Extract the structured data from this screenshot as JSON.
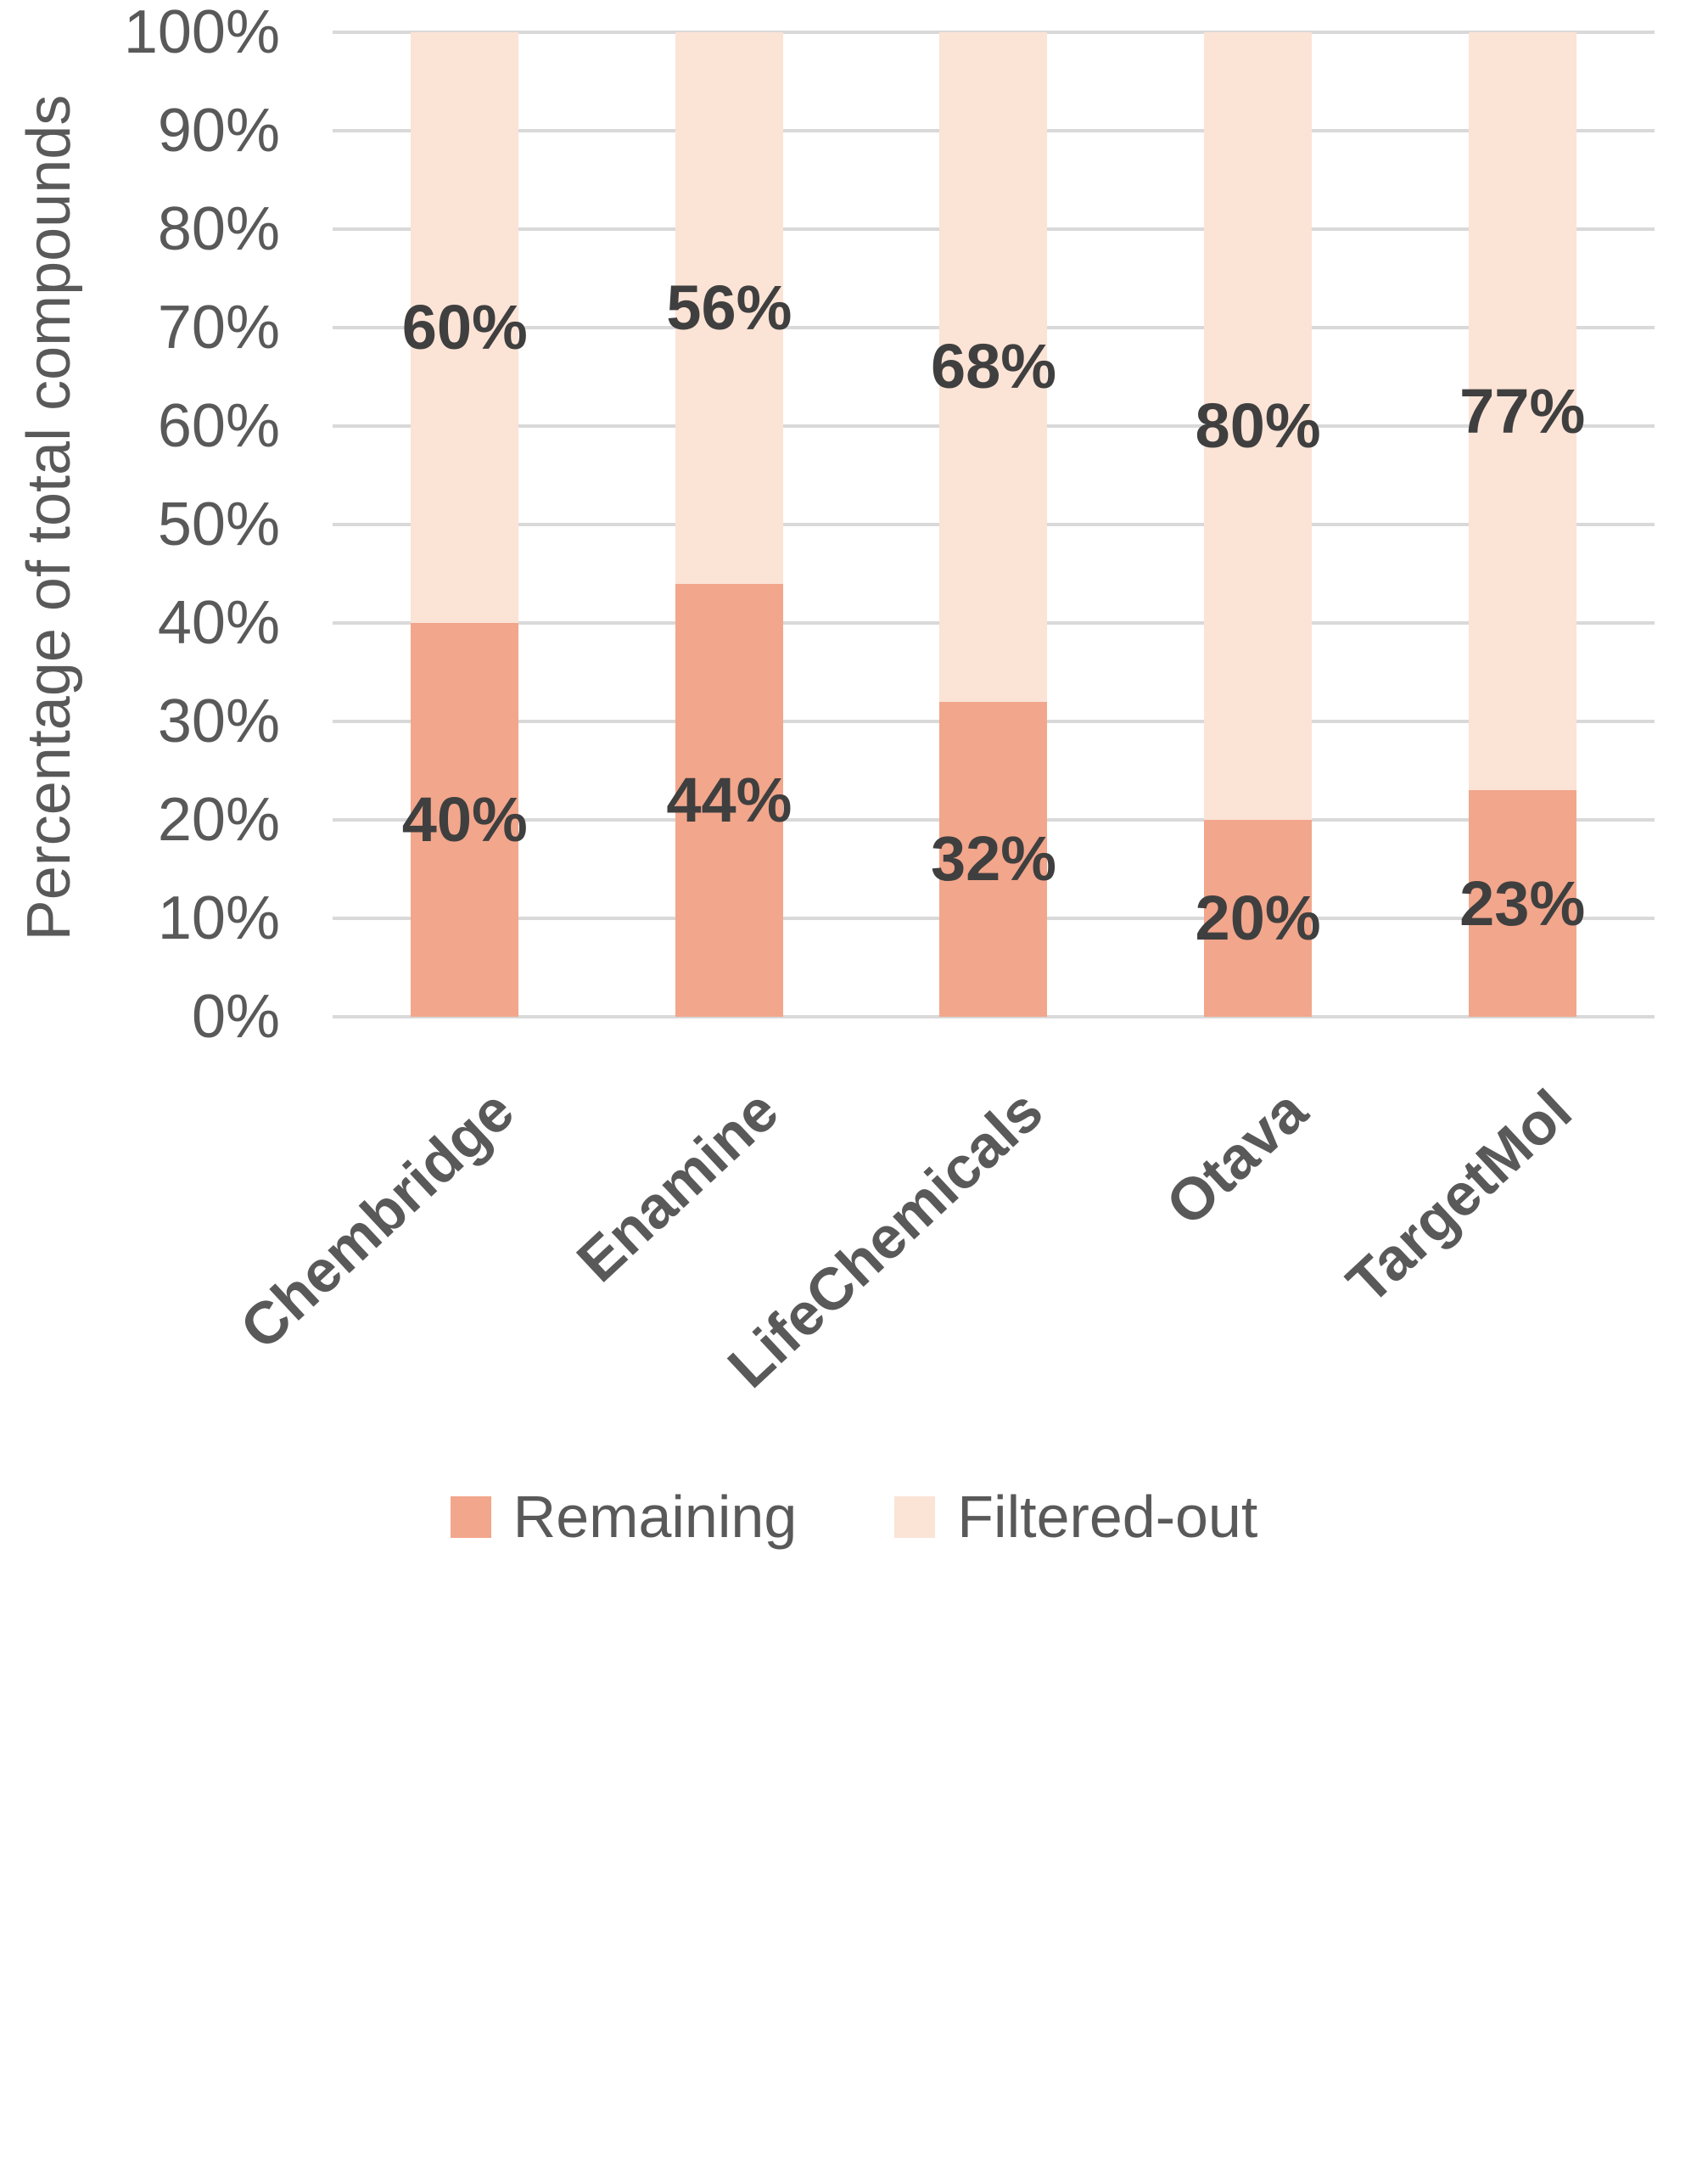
{
  "chart_data": {
    "type": "bar",
    "stacked": true,
    "title": "",
    "xlabel": "",
    "ylabel": "Percentage of total compounds",
    "categories": [
      "Chembridge",
      "Enamine",
      "LifeChemicals",
      "Otava",
      "TargetMol"
    ],
    "series": [
      {
        "name": "Remaining",
        "color": "#f2a68b",
        "values": [
          40,
          44,
          32,
          20,
          23
        ],
        "data_labels": [
          "40%",
          "44%",
          "32%",
          "20%",
          "23%"
        ]
      },
      {
        "name": "Filtered-out",
        "color": "#fbe3d6",
        "values": [
          60,
          56,
          68,
          80,
          77
        ],
        "data_labels": [
          "60%",
          "56%",
          "68%",
          "80%",
          "77%"
        ]
      }
    ],
    "ylim": [
      0,
      100
    ],
    "yticks": [
      "0%",
      "10%",
      "20%",
      "30%",
      "40%",
      "50%",
      "60%",
      "70%",
      "80%",
      "90%",
      "100%"
    ],
    "grid": true,
    "legend_position": "bottom",
    "colors": {
      "gridline": "#d9d9d9",
      "axis_text": "#595959",
      "data_label_text": "#3f3f3f",
      "background": "#ffffff"
    }
  }
}
